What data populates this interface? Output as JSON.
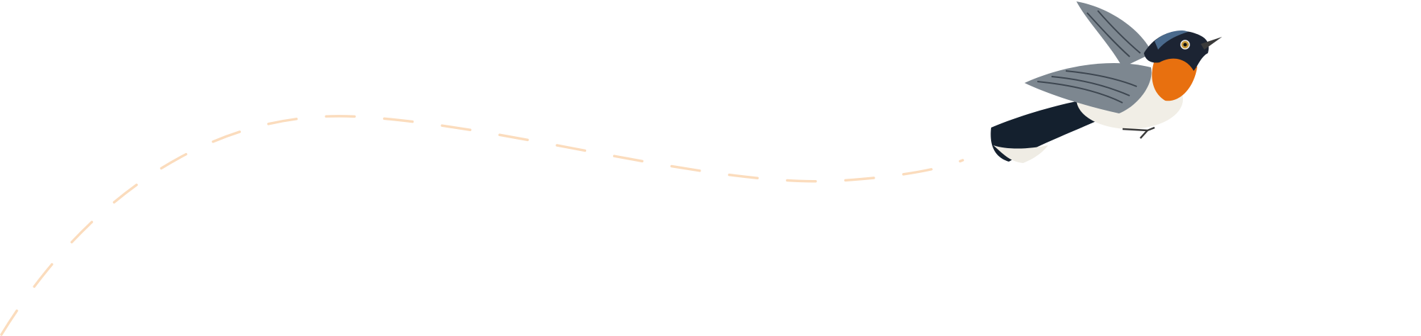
{
  "illustration": {
    "subject": "bird-icon",
    "flight_path": {
      "style": "dashed",
      "color": "#fbdcbd"
    },
    "colors": {
      "throat": "#e8700f",
      "head": "#1c2433",
      "crown": "#4a6a8c",
      "wing": "#7d8790",
      "belly": "#f1eee6",
      "tail": "#14202e"
    }
  }
}
